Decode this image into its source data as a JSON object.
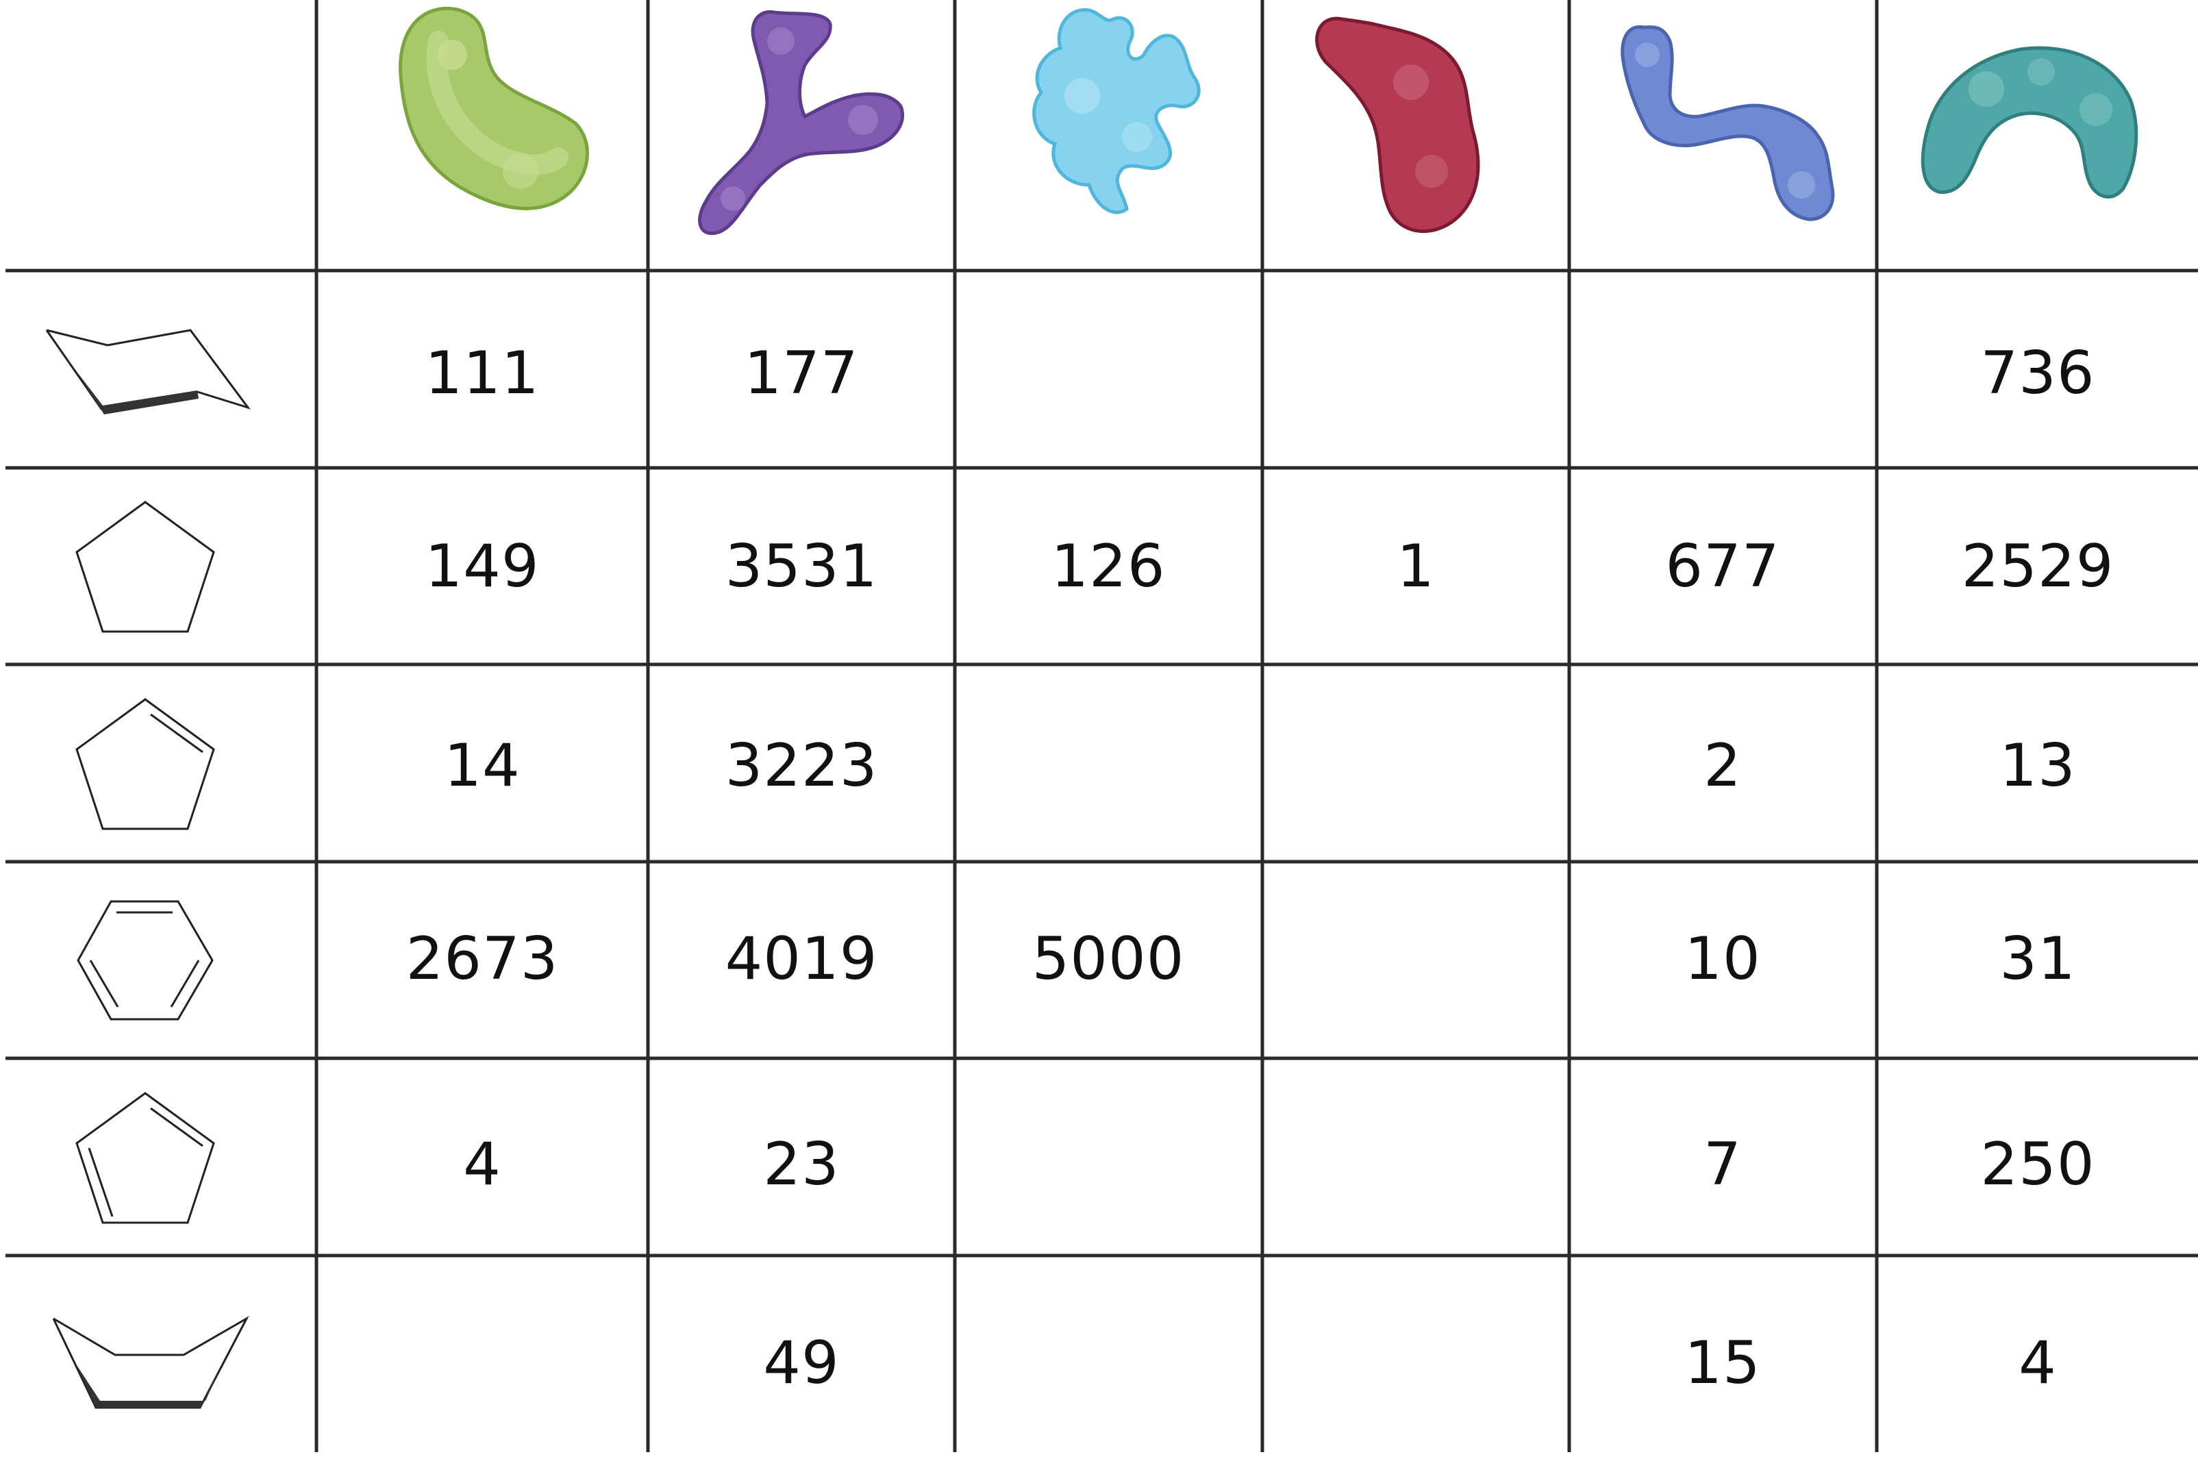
{
  "columns": [
    {
      "icon": "green-bean-protein-icon",
      "color": "#8fbf4f"
    },
    {
      "icon": "purple-antibody-protein-icon",
      "color": "#7f5ab0"
    },
    {
      "icon": "light-blue-cloud-protein-icon",
      "color": "#7fd0ef"
    },
    {
      "icon": "crimson-kidney-protein-icon",
      "color": "#b02a45"
    },
    {
      "icon": "blue-chain-protein-icon",
      "color": "#6f86d0"
    },
    {
      "icon": "teal-horseshoe-protein-icon",
      "color": "#4aa0a0"
    }
  ],
  "rows": [
    {
      "icon": "cyclohexane-chair-icon",
      "values": [
        "111",
        "177",
        "",
        "",
        "",
        "736"
      ]
    },
    {
      "icon": "cyclopentane-icon",
      "values": [
        "149",
        "3531",
        "126",
        "1",
        "677",
        "2529"
      ]
    },
    {
      "icon": "cyclopentene-icon",
      "values": [
        "14",
        "3223",
        "",
        "",
        "2",
        "13"
      ]
    },
    {
      "icon": "benzene-icon",
      "values": [
        "2673",
        "4019",
        "5000",
        "",
        "10",
        "31"
      ]
    },
    {
      "icon": "cyclopentadiene-icon",
      "values": [
        "4",
        "23",
        "",
        "",
        "7",
        "250"
      ]
    },
    {
      "icon": "cyclohexane-boat-icon",
      "values": [
        "",
        "49",
        "",
        "",
        "15",
        "4"
      ]
    }
  ]
}
